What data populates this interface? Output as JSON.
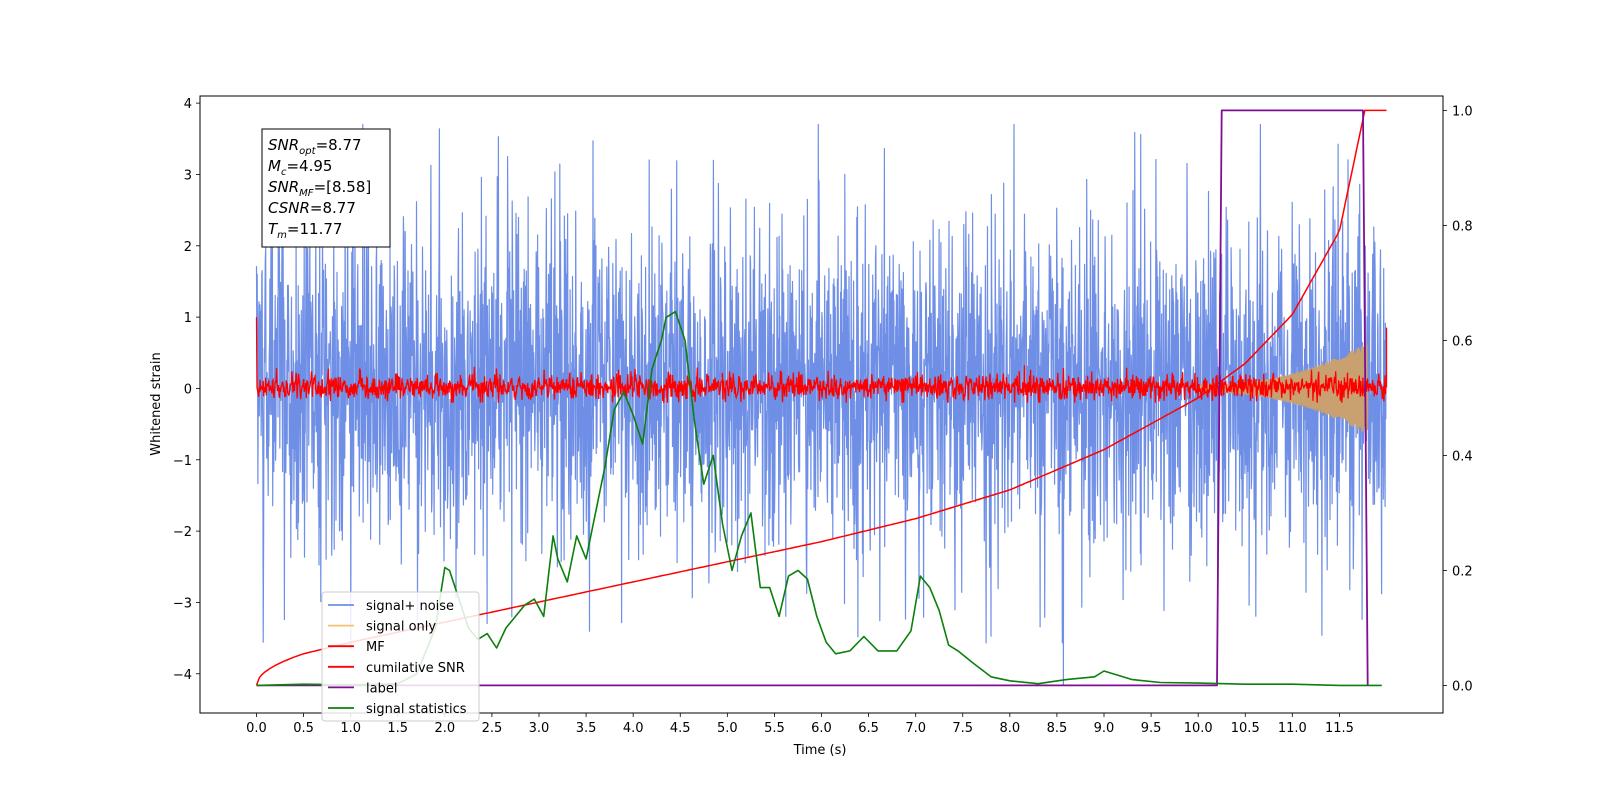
{
  "chart_data": {
    "type": "line",
    "xlabel": "Time (s)",
    "ylabel": "Whitened strain",
    "xlim": [
      -0.6,
      12.6
    ],
    "ylim": [
      -4.55,
      4.1
    ],
    "ylim_right": [
      -0.048,
      1.025
    ],
    "x_ticks": [
      "0.0",
      "0.5",
      "1.0",
      "1.5",
      "2.0",
      "2.5",
      "3.0",
      "3.5",
      "4.0",
      "4.5",
      "5.0",
      "5.5",
      "6.0",
      "6.5",
      "7.0",
      "7.5",
      "8.0",
      "8.5",
      "9.0",
      "9.5",
      "10.0",
      "10.5",
      "11.0",
      "11.5"
    ],
    "y_ticks": [
      "4",
      "3",
      "2",
      "1",
      "0",
      "−1",
      "−2",
      "−3",
      "−4"
    ],
    "y_ticks_right": [
      "1.0",
      "0.8",
      "0.6",
      "0.4",
      "0.2",
      "0.0"
    ],
    "colors": {
      "signal_noise": "#6f8fe6",
      "signal_only": "#f5c16c",
      "signal_only_fill": "#c9a070",
      "mf": "#ff0000",
      "cumulative_snr": "#ff0000",
      "label": "#7f0f90",
      "signal_statistics": "#0c7f0c"
    },
    "annotations": [
      {
        "main": "SNR",
        "sub": "opt",
        "rest": "=8.77"
      },
      {
        "main": "M",
        "sub": "c",
        "rest": "=4.95"
      },
      {
        "main": "SNR",
        "sub": "MF",
        "rest": "=[8.58]"
      },
      {
        "main": "CSNR",
        "sub": "",
        "rest": "=8.77"
      },
      {
        "main": "T",
        "sub": "m",
        "rest": "=11.77"
      }
    ],
    "legend": {
      "placement": "lower-left",
      "entries": [
        {
          "label": "signal+ noise",
          "color": "#6f8fe6"
        },
        {
          "label": "signal only",
          "color": "#f5c16c"
        },
        {
          "label": "MF",
          "color": "#ff0000"
        },
        {
          "label": "cumilative SNR",
          "color": "#ff0000"
        },
        {
          "label": "label",
          "color": "#7f0f90"
        },
        {
          "label": "signal statistics",
          "color": "#0c7f0c"
        }
      ]
    },
    "series": [
      {
        "name": "signal+ noise",
        "axis": "left",
        "x_range": [
          0.0,
          12.0
        ],
        "approx_band": [
          -2.4,
          2.5
        ],
        "approx_max": 3.7,
        "approx_min": -4.15
      },
      {
        "name": "signal only",
        "axis": "left",
        "x_range": [
          10.0,
          11.8
        ],
        "approx_envelope_end": 0.6
      },
      {
        "name": "MF",
        "axis": "left",
        "x_range": [
          0.0,
          12.0
        ],
        "approx_band": [
          -0.15,
          0.2
        ],
        "approx_start": 1.0,
        "approx_end": 0.85
      },
      {
        "name": "cumilative SNR",
        "axis": "right",
        "x": [
          0.0,
          0.5,
          1.0,
          2.0,
          3.0,
          4.0,
          5.0,
          6.0,
          7.0,
          8.0,
          9.0,
          10.0,
          10.5,
          11.0,
          11.5,
          11.77,
          12.0
        ],
        "y": [
          0.0,
          0.055,
          0.075,
          0.11,
          0.145,
          0.18,
          0.215,
          0.25,
          0.29,
          0.34,
          0.41,
          0.5,
          0.56,
          0.645,
          0.79,
          1.0,
          1.0
        ]
      },
      {
        "name": "label",
        "axis": "right",
        "x": [
          0.0,
          10.2,
          10.25,
          11.75,
          11.8
        ],
        "y": [
          0.0,
          0.0,
          1.0,
          1.0,
          0.0
        ]
      },
      {
        "name": "signal statistics",
        "axis": "right",
        "x": [
          0.0,
          0.5,
          1.0,
          1.5,
          1.7,
          1.9,
          2.0,
          2.05,
          2.15,
          2.25,
          2.35,
          2.45,
          2.55,
          2.65,
          2.75,
          2.85,
          2.95,
          3.05,
          3.15,
          3.2,
          3.3,
          3.4,
          3.5,
          3.6,
          3.7,
          3.8,
          3.9,
          4.0,
          4.1,
          4.2,
          4.3,
          4.35,
          4.45,
          4.55,
          4.65,
          4.75,
          4.85,
          4.95,
          5.05,
          5.15,
          5.25,
          5.35,
          5.45,
          5.55,
          5.65,
          5.75,
          5.85,
          5.95,
          6.05,
          6.15,
          6.3,
          6.45,
          6.6,
          6.8,
          6.95,
          7.05,
          7.15,
          7.25,
          7.35,
          7.45,
          7.6,
          7.8,
          8.0,
          8.3,
          8.6,
          8.9,
          9.0,
          9.1,
          9.3,
          9.6,
          10.0,
          10.5,
          11.0,
          11.5,
          11.95
        ],
        "y": [
          0.0,
          0.002,
          0.001,
          0.003,
          0.02,
          0.1,
          0.205,
          0.2,
          0.15,
          0.1,
          0.08,
          0.09,
          0.065,
          0.1,
          0.12,
          0.14,
          0.15,
          0.12,
          0.26,
          0.22,
          0.18,
          0.26,
          0.22,
          0.3,
          0.38,
          0.48,
          0.51,
          0.47,
          0.42,
          0.55,
          0.6,
          0.64,
          0.65,
          0.6,
          0.46,
          0.35,
          0.4,
          0.28,
          0.2,
          0.26,
          0.3,
          0.17,
          0.17,
          0.12,
          0.19,
          0.2,
          0.185,
          0.12,
          0.075,
          0.055,
          0.06,
          0.085,
          0.06,
          0.06,
          0.095,
          0.19,
          0.17,
          0.13,
          0.07,
          0.06,
          0.04,
          0.015,
          0.008,
          0.003,
          0.01,
          0.015,
          0.025,
          0.02,
          0.01,
          0.005,
          0.004,
          0.002,
          0.002,
          0.0,
          0.0
        ]
      }
    ]
  }
}
